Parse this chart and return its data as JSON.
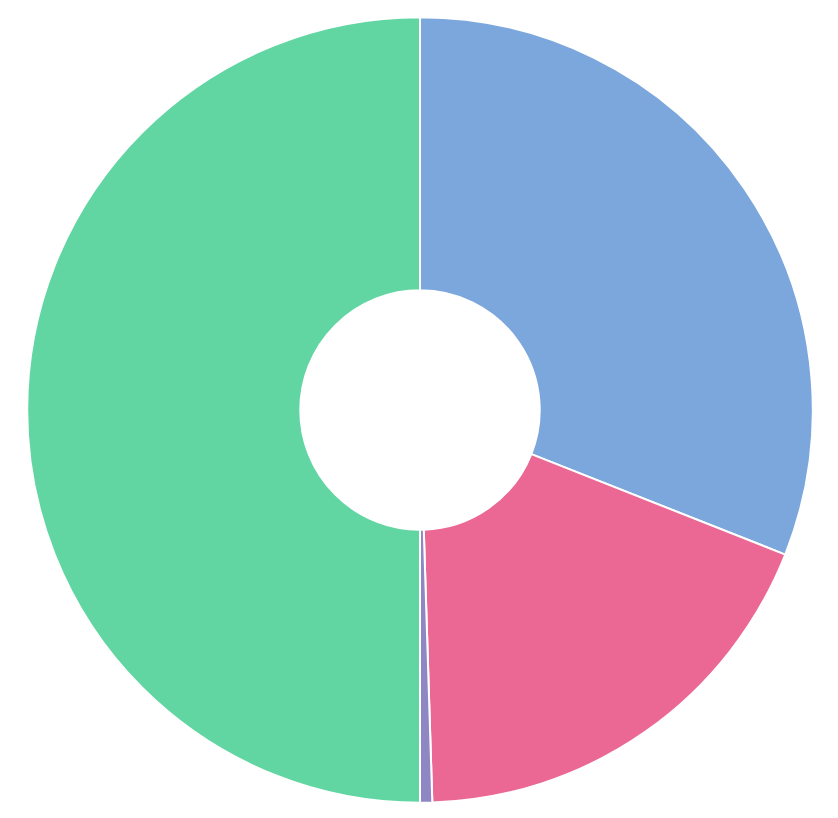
{
  "chart_data": {
    "type": "donut",
    "categories": [
      null,
      null,
      null,
      null
    ],
    "values": [
      31,
      18.5,
      0.5,
      50
    ],
    "colors": [
      "#7ba7dc",
      "#ec6894",
      "#8f86c4",
      "#62d6a2"
    ]
  }
}
